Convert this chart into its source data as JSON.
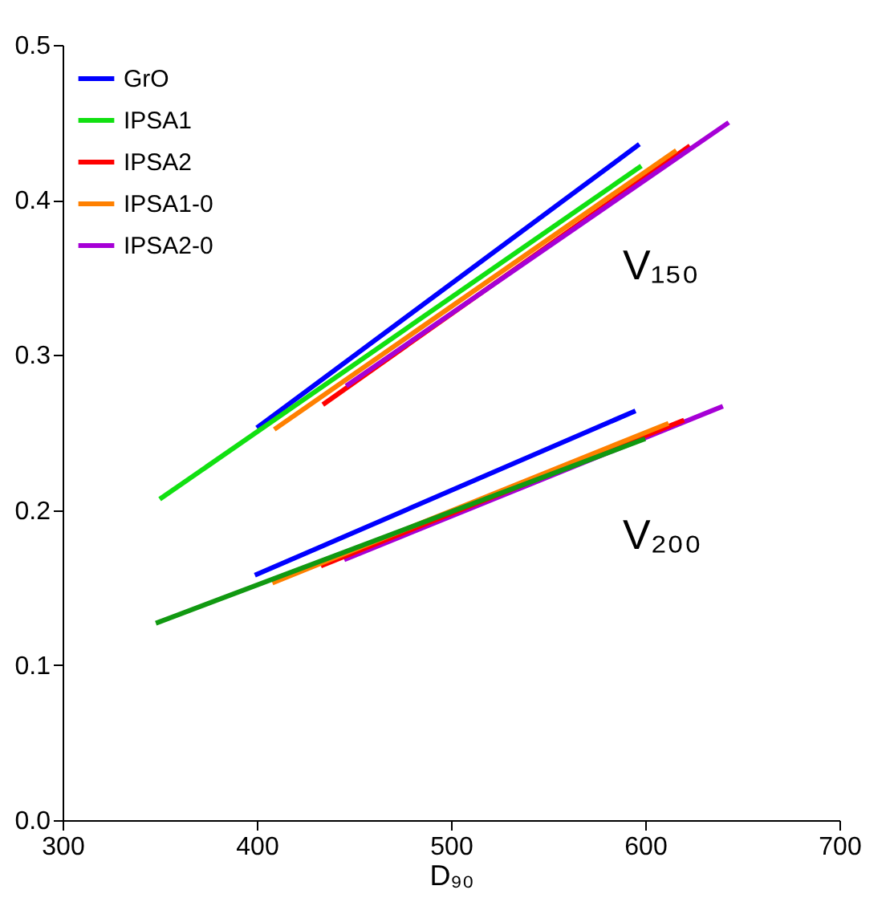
{
  "chart_data": {
    "type": "line",
    "xlabel": "D₉₀",
    "xlim": [
      300,
      700
    ],
    "xticks": [
      300,
      400,
      500,
      600,
      700
    ],
    "ylim": [
      0,
      0.5
    ],
    "yticks": [
      {
        "value": 0,
        "label": "0.0"
      },
      {
        "value": 0.1,
        "label": "0.1"
      },
      {
        "value": 0.2,
        "label": "0.2"
      },
      {
        "value": 0.3,
        "label": "0.3"
      },
      {
        "value": 0.4,
        "label": "0.4"
      },
      {
        "value": 0.5,
        "label": "0.5"
      }
    ],
    "grid": false,
    "legend": "top left",
    "marker": "none",
    "line_style": "solid",
    "annotations": [
      "V₁₅₀",
      "V₂₀₀"
    ],
    "series": [
      {
        "name": "GrO",
        "color": "#0000ff",
        "x": [
          400,
          597
        ],
        "values": [
          0.253,
          0.436
        ]
      },
      {
        "name": "IPSA1",
        "color": "#11e011",
        "x": [
          350,
          598
        ],
        "values": [
          0.207,
          0.422
        ]
      },
      {
        "name": "IPSA2",
        "color": "#ff0000",
        "x": [
          434,
          623
        ],
        "values": [
          0.268,
          0.435
        ]
      },
      {
        "name": "IPSA1-0",
        "color": "#ff8000",
        "x": [
          409,
          616
        ],
        "values": [
          0.252,
          0.432
        ]
      },
      {
        "name": "IPSA2-0",
        "color": "#a600d6",
        "x": [
          446,
          643
        ],
        "values": [
          0.28,
          0.45
        ]
      },
      {
        "color": "#a600d6",
        "x": [
          445,
          640
        ],
        "values": [
          0.168,
          0.267
        ]
      },
      {
        "color": "#ff0000",
        "x": [
          433,
          620
        ],
        "values": [
          0.164,
          0.258
        ]
      },
      {
        "color": "#ff8000",
        "x": [
          408,
          612
        ],
        "values": [
          0.153,
          0.256
        ]
      },
      {
        "color": "#119911",
        "x": [
          348,
          600
        ],
        "values": [
          0.127,
          0.246
        ]
      },
      {
        "color": "#0000ff",
        "x": [
          399,
          595
        ],
        "values": [
          0.158,
          0.264
        ]
      }
    ]
  }
}
